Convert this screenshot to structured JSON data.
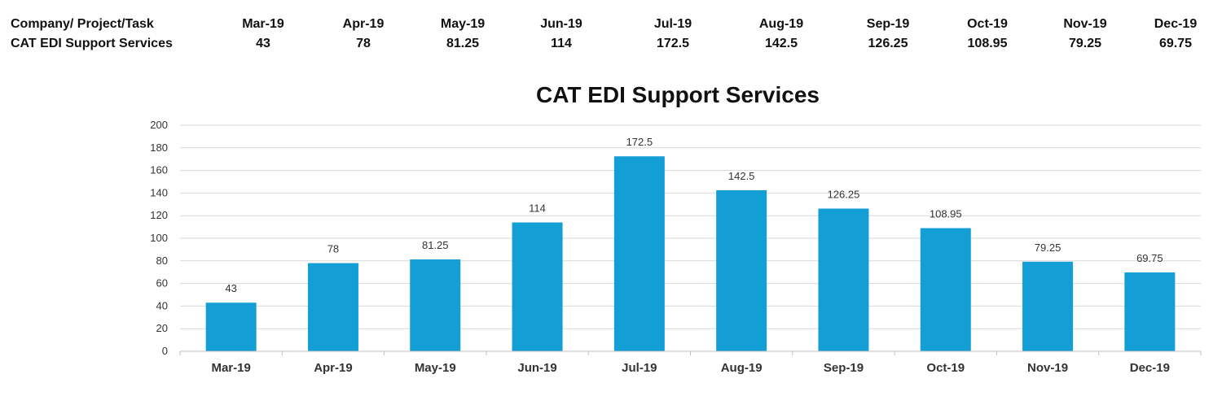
{
  "table": {
    "header_label": "Company/ Project/Task",
    "row_label": "CAT EDI Support Services",
    "months": [
      "Mar-19",
      "Apr-19",
      "May-19",
      "Jun-19",
      "Jul-19",
      "Aug-19",
      "Sep-19",
      "Oct-19",
      "Nov-19",
      "Dec-19"
    ],
    "values": [
      "43",
      "78",
      "81.25",
      "114",
      "172.5",
      "142.5",
      "126.25",
      "108.95",
      "79.25",
      "69.75"
    ]
  },
  "colors": {
    "bar": "#139fd6",
    "grid": "#d9d9d9",
    "axis": "#bfbfbf"
  },
  "chart_data": {
    "type": "bar",
    "title": "CAT EDI Support Services",
    "xlabel": "",
    "ylabel": "",
    "categories": [
      "Mar-19",
      "Apr-19",
      "May-19",
      "Jun-19",
      "Jul-19",
      "Aug-19",
      "Sep-19",
      "Oct-19",
      "Nov-19",
      "Dec-19"
    ],
    "values": [
      43,
      78,
      81.25,
      114,
      172.5,
      142.5,
      126.25,
      108.95,
      79.25,
      69.75
    ],
    "data_labels": [
      "43",
      "78",
      "81.25",
      "114",
      "172.5",
      "142.5",
      "126.25",
      "108.95",
      "79.25",
      "69.75"
    ],
    "ylim": [
      0,
      200
    ],
    "yticks": [
      0,
      20,
      40,
      60,
      80,
      100,
      120,
      140,
      160,
      180,
      200
    ],
    "grid": true,
    "legend": "none"
  }
}
